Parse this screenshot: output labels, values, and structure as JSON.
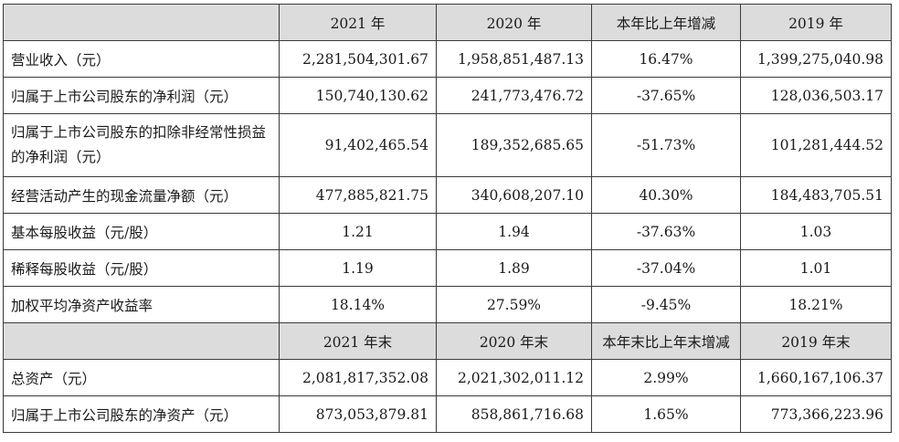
{
  "header1": {
    "col0": "",
    "col1": "2021 年",
    "col2": "2020 年",
    "col3": "本年比上年增减",
    "col4": "2019 年"
  },
  "rows1": [
    {
      "label": "营业收入（元）",
      "v2021": "2,281,504,301.67",
      "v2020": "1,958,851,487.13",
      "change": "16.47%",
      "v2019": "1,399,275,040.98"
    },
    {
      "label": "归属于上市公司股东的净利润（元）",
      "v2021": "150,740,130.62",
      "v2020": "241,773,476.72",
      "change": "-37.65%",
      "v2019": "128,036,503.17"
    },
    {
      "label": "归属于上市公司股东的扣除非经常性损益的净利润（元）",
      "v2021": "91,402,465.54",
      "v2020": "189,352,685.65",
      "change": "-51.73%",
      "v2019": "101,281,444.52"
    },
    {
      "label": "经营活动产生的现金流量净额（元）",
      "v2021": "477,885,821.75",
      "v2020": "340,608,207.10",
      "change": "40.30%",
      "v2019": "184,483,705.51"
    },
    {
      "label": "基本每股收益（元/股）",
      "v2021": "1.21",
      "v2020": "1.94",
      "change": "-37.63%",
      "v2019": "1.03"
    },
    {
      "label": "稀释每股收益（元/股）",
      "v2021": "1.19",
      "v2020": "1.89",
      "change": "-37.04%",
      "v2019": "1.01"
    },
    {
      "label": "加权平均净资产收益率",
      "v2021": "18.14%",
      "v2020": "27.59%",
      "change": "-9.45%",
      "v2019": "18.21%"
    }
  ],
  "header2": {
    "col0": "",
    "col1": "2021 年末",
    "col2": "2020 年末",
    "col3": "本年末比上年末增减",
    "col4": "2019 年末"
  },
  "rows2": [
    {
      "label": "总资产（元）",
      "v2021": "2,081,817,352.08",
      "v2020": "2,021,302,011.12",
      "change": "2.99%",
      "v2019": "1,660,167,106.37"
    },
    {
      "label": "归属于上市公司股东的净资产（元）",
      "v2021": "873,053,879.81",
      "v2020": "858,861,716.68",
      "change": "1.65%",
      "v2019": "773,366,223.96"
    }
  ],
  "colors": {
    "header_bg": "#dcdcdc",
    "border": "#3a3a3a",
    "text": "#1a1a1a"
  }
}
